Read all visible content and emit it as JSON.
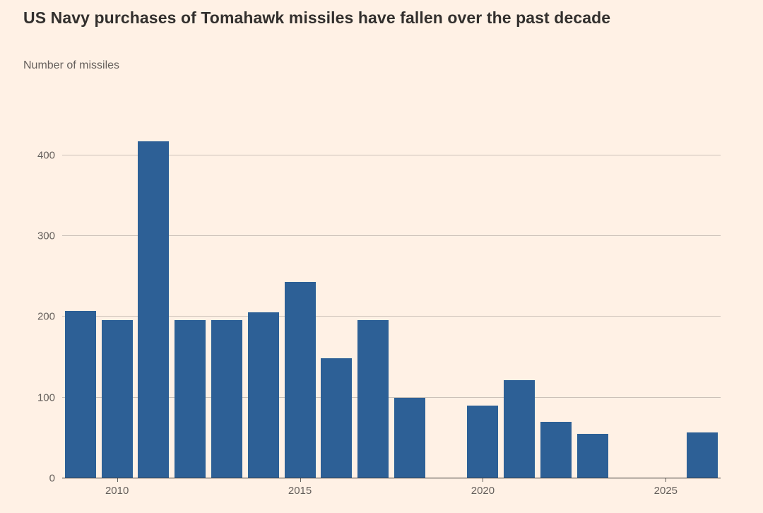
{
  "chart_data": {
    "type": "bar",
    "title": "US Navy purchases of Tomahawk missiles have fallen over the past decade",
    "subtitle": "Number of missiles",
    "xlabel": "",
    "ylabel": "Number of missiles",
    "x": [
      2009,
      2010,
      2011,
      2012,
      2013,
      2014,
      2015,
      2016,
      2017,
      2018,
      2019,
      2020,
      2021,
      2022,
      2023,
      2024,
      2025,
      2026
    ],
    "values": [
      207,
      196,
      417,
      196,
      196,
      206,
      243,
      149,
      196,
      100,
      0,
      90,
      122,
      70,
      55,
      0,
      0,
      57
    ],
    "xticks": [
      2010,
      2015,
      2020,
      2025
    ],
    "yticks": [
      0,
      100,
      200,
      300,
      400
    ],
    "ylim": [
      0,
      461
    ],
    "grid": "horizontal",
    "legend": "none",
    "bar_color": "#2d6096",
    "background_color": "#fff1e5",
    "title_color": "#33302e",
    "axis_text_color": "#66605c"
  }
}
